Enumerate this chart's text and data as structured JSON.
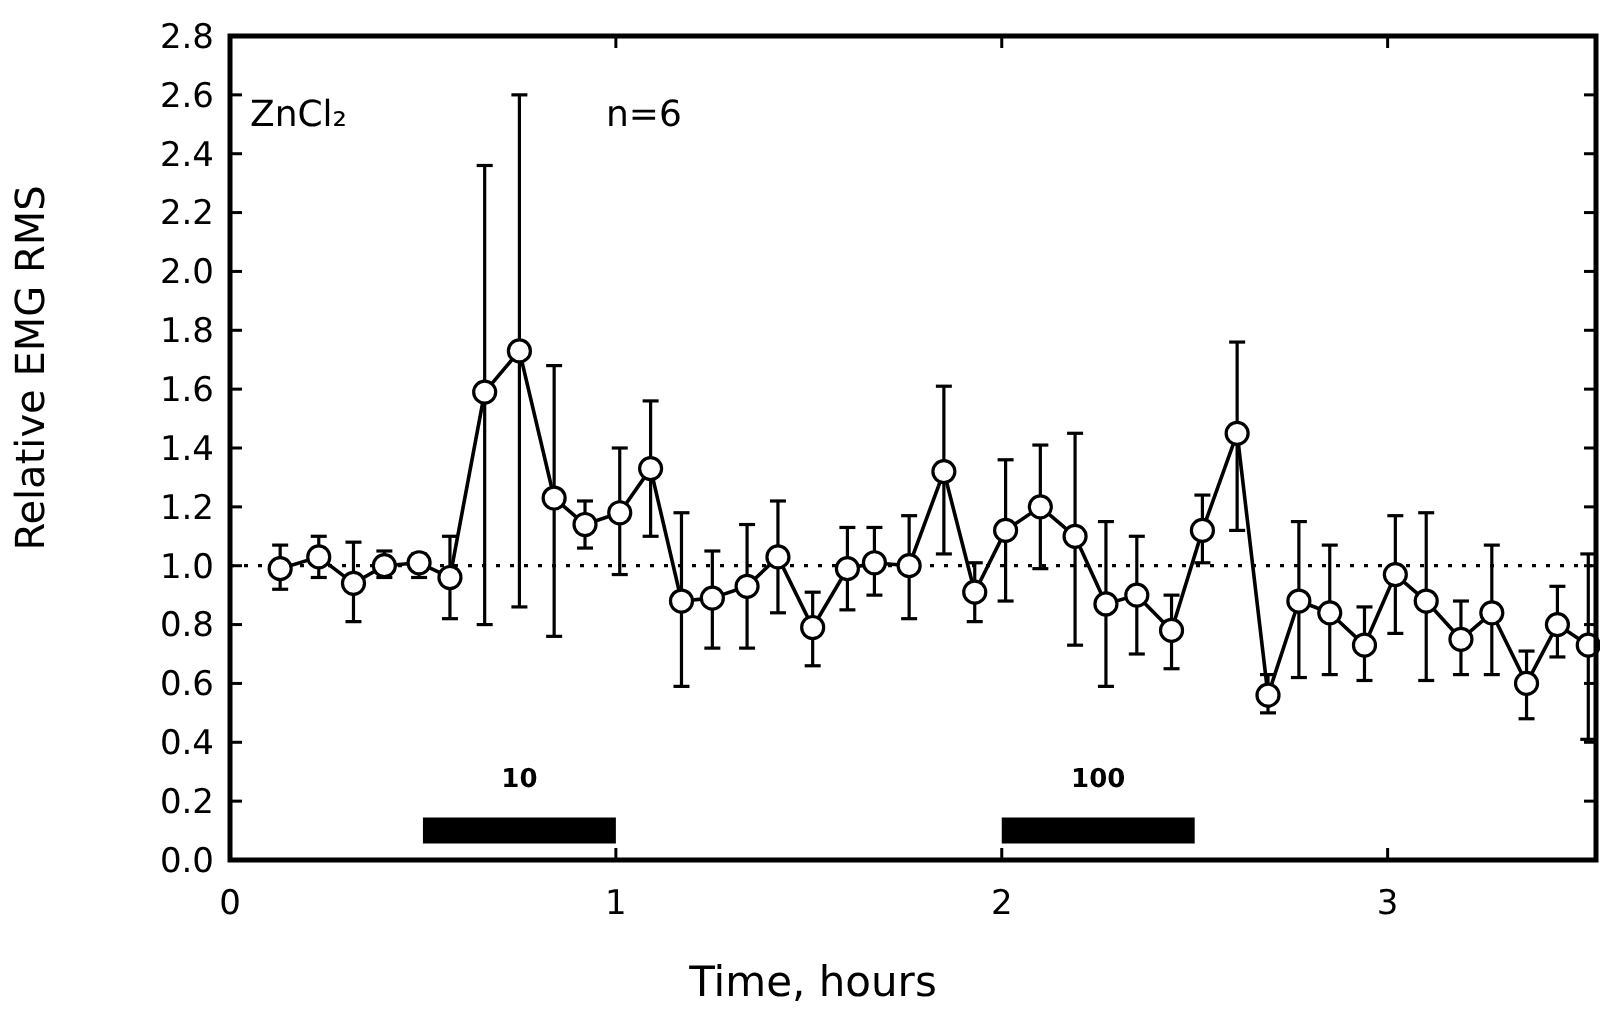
{
  "chart_data": {
    "type": "line",
    "xlabel": "Time, hours",
    "ylabel": "Relative EMG RMS",
    "xlim": [
      0,
      3.54
    ],
    "xticks": [
      {
        "value": 0,
        "label": "0"
      },
      1,
      2,
      3
    ],
    "ylim": [
      0,
      2.8
    ],
    "yticks": [
      {
        "value": 0,
        "label": "0.0"
      },
      0.2,
      0.4,
      0.6,
      0.8,
      {
        "value": 1,
        "label": "1.0"
      },
      1.2,
      1.4,
      1.6,
      1.8,
      {
        "value": 2,
        "label": "2.0"
      },
      2.2,
      2.4,
      2.6,
      2.8
    ],
    "marker": "circle",
    "line_style": "solid",
    "grid": false,
    "series": [
      {
        "color": "#000000",
        "x": [
          0.13,
          0.23,
          0.32,
          0.4,
          0.49,
          0.57,
          0.66,
          0.75,
          0.84,
          0.92,
          1.01,
          1.09,
          1.17,
          1.25,
          1.34,
          1.42,
          1.51,
          1.6,
          1.67,
          1.76,
          1.85,
          1.93,
          2.01,
          2.1,
          2.19,
          2.27,
          2.35,
          2.44,
          2.52,
          2.61,
          2.69,
          2.77,
          2.85,
          2.94,
          3.02,
          3.1,
          3.19,
          3.27,
          3.36,
          3.44,
          3.52
        ],
        "values": [
          0.99,
          1.03,
          0.94,
          1.0,
          1.01,
          0.96,
          1.59,
          1.73,
          1.23,
          1.14,
          1.18,
          1.33,
          0.88,
          0.89,
          0.93,
          1.03,
          0.79,
          0.99,
          1.01,
          1.0,
          1.32,
          0.91,
          1.12,
          1.2,
          1.1,
          0.87,
          0.9,
          0.78,
          1.12,
          1.45,
          0.56,
          0.88,
          0.84,
          0.73,
          0.97,
          0.88,
          0.75,
          0.84,
          0.6,
          0.8,
          0.73
        ],
        "errors": [
          [
            0.92,
            1.07
          ],
          [
            0.96,
            1.1
          ],
          [
            0.81,
            1.08
          ],
          [
            0.96,
            1.05
          ],
          [
            0.96,
            1.04
          ],
          [
            0.82,
            1.1
          ],
          [
            0.8,
            2.36
          ],
          [
            0.86,
            2.6
          ],
          [
            0.76,
            1.68
          ],
          [
            1.06,
            1.22
          ],
          [
            0.97,
            1.4
          ],
          [
            1.1,
            1.56
          ],
          [
            0.59,
            1.18
          ],
          [
            0.72,
            1.05
          ],
          [
            0.72,
            1.14
          ],
          [
            0.84,
            1.22
          ],
          [
            0.66,
            0.91
          ],
          [
            0.85,
            1.13
          ],
          [
            0.9,
            1.13
          ],
          [
            0.82,
            1.17
          ],
          [
            1.04,
            1.61
          ],
          [
            0.81,
            1.01
          ],
          [
            0.88,
            1.36
          ],
          [
            0.99,
            1.41
          ],
          [
            0.73,
            1.45
          ],
          [
            0.59,
            1.15
          ],
          [
            0.7,
            1.1
          ],
          [
            0.65,
            0.9
          ],
          [
            1.01,
            1.24
          ],
          [
            1.12,
            1.76
          ],
          [
            0.5,
            0.63
          ],
          [
            0.62,
            1.15
          ],
          [
            0.63,
            1.07
          ],
          [
            0.61,
            0.86
          ],
          [
            0.77,
            1.17
          ],
          [
            0.61,
            1.18
          ],
          [
            0.63,
            0.88
          ],
          [
            0.63,
            1.07
          ],
          [
            0.48,
            0.71
          ],
          [
            0.69,
            0.93
          ],
          [
            0.41,
            1.04
          ]
        ]
      },
      {
        "type": "line",
        "name": "10",
        "color": "#000000",
        "marker": "none",
        "x": [
          0.5,
          1
        ],
        "values": [
          0.1,
          0.1
        ]
      },
      {
        "type": "line",
        "name": "100",
        "color": "#000000",
        "marker": "none",
        "x": [
          2,
          2.5
        ],
        "values": [
          0.1,
          0.1
        ]
      }
    ],
    "ref_lines": [
      {
        "axis": "y",
        "value": 1,
        "line_style": "dotted",
        "color": "#000000"
      }
    ],
    "annotations": [
      "ZnCl₂",
      "n=6"
    ]
  }
}
